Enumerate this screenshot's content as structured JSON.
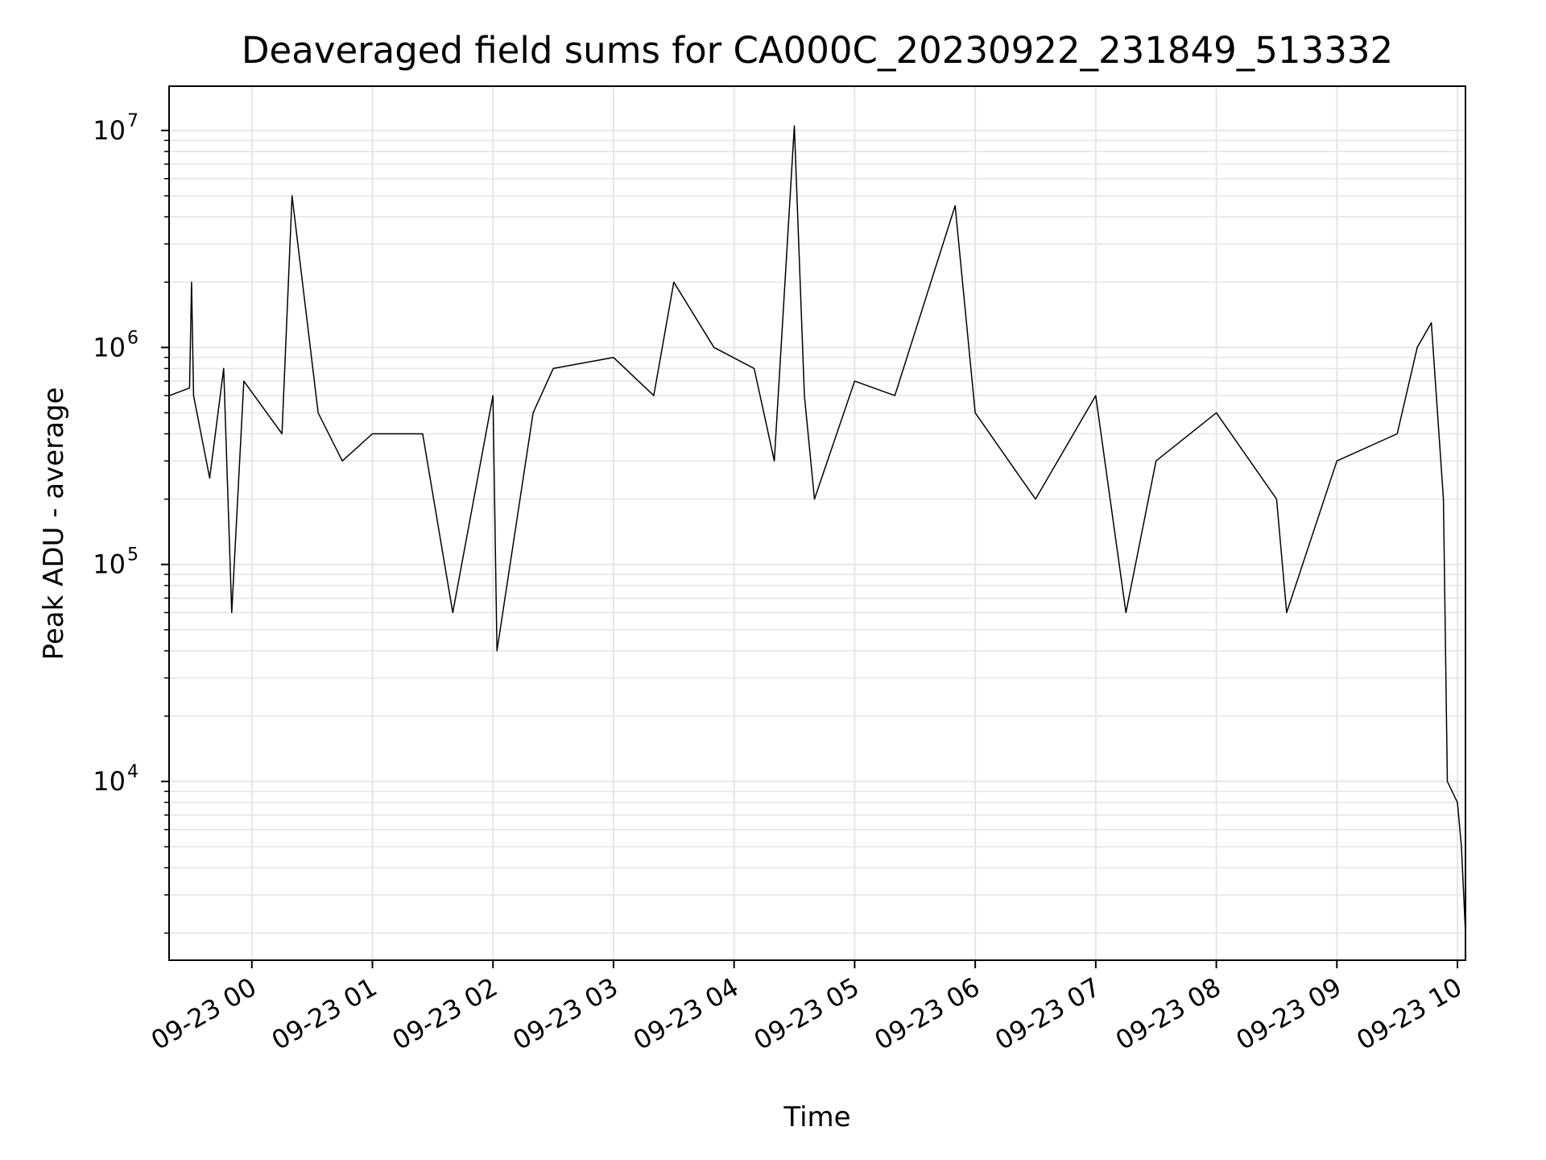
{
  "chart_data": {
    "type": "line",
    "title": "Deaveraged field sums for CA000C_20230922_231849_513332",
    "xlabel": "Time",
    "ylabel": "Peak ADU - average",
    "yscale": "log",
    "ylim": [
      1500,
      16000000
    ],
    "xlim": [
      "09-22 23:18:49",
      "09-23 10:04"
    ],
    "grid": true,
    "legend": "none",
    "line_color": "#000000",
    "grid_color": "#e6e6e6",
    "x_ticks": [
      "09-23 00",
      "09-23 01",
      "09-23 02",
      "09-23 03",
      "09-23 04",
      "09-23 05",
      "09-23 06",
      "09-23 07",
      "09-23 08",
      "09-23 09",
      "09-23 10"
    ],
    "y_ticks": [
      {
        "value": 10000,
        "base": "10",
        "exp": "4"
      },
      {
        "value": 100000,
        "base": "10",
        "exp": "5"
      },
      {
        "value": 1000000,
        "base": "10",
        "exp": "6"
      },
      {
        "value": 10000000,
        "base": "10",
        "exp": "7"
      }
    ],
    "series": [
      {
        "x": [
          "09-22 23:19",
          "09-22 23:29",
          "09-22 23:30",
          "09-22 23:31",
          "09-22 23:39",
          "09-22 23:46",
          "09-22 23:50",
          "09-22 23:56",
          "09-23 00:15",
          "09-23 00:20",
          "09-23 00:33",
          "09-23 00:45",
          "09-23 01:00",
          "09-23 01:25",
          "09-23 01:40",
          "09-23 02:00",
          "09-23 02:02",
          "09-23 02:20",
          "09-23 02:30",
          "09-23 03:00",
          "09-23 03:20",
          "09-23 03:30",
          "09-23 03:50",
          "09-23 04:10",
          "09-23 04:20",
          "09-23 04:30",
          "09-23 04:35",
          "09-23 04:40",
          "09-23 05:00",
          "09-23 05:20",
          "09-23 05:50",
          "09-23 06:00",
          "09-23 06:30",
          "09-23 07:00",
          "09-23 07:15",
          "09-23 07:30",
          "09-23 08:00",
          "09-23 08:30",
          "09-23 08:35",
          "09-23 09:00",
          "09-23 09:30",
          "09-23 09:40",
          "09-23 09:47",
          "09-23 09:53",
          "09-23 09:55",
          "09-23 10:00",
          "09-23 10:02",
          "09-23 10:04"
        ],
        "y": [
          600000,
          650000,
          2000000,
          600000,
          250000,
          800000,
          60000,
          700000,
          400000,
          5000000,
          500000,
          300000,
          400000,
          400000,
          60000,
          600000,
          40000,
          500000,
          800000,
          900000,
          600000,
          2000000,
          1000000,
          800000,
          300000,
          10500000,
          600000,
          200000,
          700000,
          600000,
          4500000,
          500000,
          200000,
          600000,
          60000,
          300000,
          500000,
          200000,
          60000,
          300000,
          400000,
          1000000,
          1300000,
          200000,
          10000,
          8000,
          5000,
          2000
        ]
      }
    ]
  }
}
